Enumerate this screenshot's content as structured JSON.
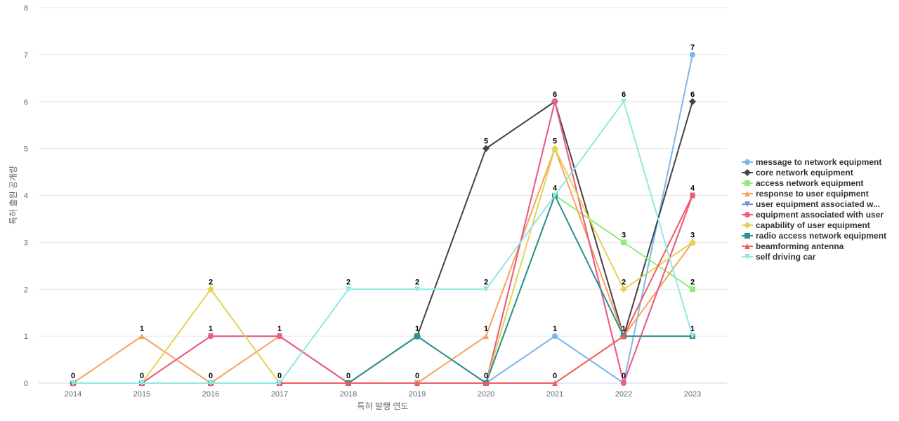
{
  "chart_data": {
    "type": "line",
    "title": "",
    "xlabel": "특허 발행 연도",
    "ylabel": "특허 출원 공개량",
    "x": [
      "2014",
      "2015",
      "2016",
      "2017",
      "2018",
      "2019",
      "2020",
      "2021",
      "2022",
      "2023"
    ],
    "ylim": [
      0,
      8
    ],
    "yticks": [
      0,
      1,
      2,
      3,
      4,
      5,
      6,
      7,
      8
    ],
    "grid": "horizontal",
    "legend_position": "right",
    "series": [
      {
        "name": "message to network equipment",
        "color": "#7cb5ec",
        "marker": "circle",
        "values": [
          0,
          0,
          0,
          0,
          0,
          0,
          0,
          1,
          0,
          7
        ],
        "labels": [
          "",
          "",
          "",
          "",
          "",
          "",
          "",
          "1",
          "",
          "7"
        ]
      },
      {
        "name": "core network equipment",
        "color": "#434348",
        "marker": "diamond",
        "values": [
          0,
          0,
          0,
          0,
          0,
          1,
          5,
          6,
          1,
          6
        ],
        "labels": [
          "",
          "",
          "",
          "",
          "",
          "",
          "5",
          "6",
          "",
          "6"
        ]
      },
      {
        "name": "access network equipment",
        "color": "#90ed7d",
        "marker": "square",
        "values": [
          0,
          0,
          0,
          0,
          0,
          1,
          0,
          4,
          3,
          2
        ],
        "labels": [
          "",
          "",
          "",
          "",
          "",
          "",
          "",
          "",
          "3",
          "2"
        ]
      },
      {
        "name": "response to user equipment",
        "color": "#f7a35c",
        "marker": "triangle",
        "values": [
          0,
          1,
          0,
          1,
          0,
          0,
          1,
          5,
          1,
          3
        ],
        "labels": [
          "",
          "1",
          "",
          "",
          "",
          "0",
          "1",
          "",
          "",
          ""
        ]
      },
      {
        "name": "user equipment associated w...",
        "color": "#8085e9",
        "marker": "triangle-down",
        "values": [
          0,
          0,
          1,
          1,
          0,
          0,
          0,
          6,
          0,
          4
        ],
        "labels": [
          "",
          "",
          "",
          "",
          "",
          "",
          "",
          "",
          "",
          ""
        ]
      },
      {
        "name": "equipment associated with user",
        "color": "#f15c80",
        "marker": "circle",
        "values": [
          0,
          0,
          1,
          1,
          0,
          0,
          0,
          6,
          0,
          4
        ],
        "labels": [
          "",
          "0",
          "1",
          "1",
          "",
          "",
          "",
          "",
          "0",
          ""
        ]
      },
      {
        "name": "capability of user equipment",
        "color": "#e4d354",
        "marker": "diamond",
        "values": [
          0,
          0,
          2,
          0,
          0,
          0,
          0,
          5,
          2,
          3
        ],
        "labels": [
          "0",
          "",
          "2",
          "0",
          "",
          "",
          "",
          "5",
          "2",
          "3"
        ]
      },
      {
        "name": "radio access network equipment",
        "color": "#2b908f",
        "marker": "square",
        "values": [
          0,
          0,
          0,
          0,
          0,
          1,
          0,
          4,
          1,
          1
        ],
        "labels": [
          "",
          "",
          "",
          "",
          "0",
          "1",
          "0",
          "",
          "1",
          ""
        ]
      },
      {
        "name": "beamforming antenna",
        "color": "#f45b5b",
        "marker": "triangle",
        "values": [
          0,
          0,
          0,
          0,
          0,
          0,
          0,
          0,
          1,
          4
        ],
        "labels": [
          "",
          "",
          "",
          "",
          "",
          "",
          "",
          "0",
          "",
          "4"
        ]
      },
      {
        "name": "self driving car",
        "color": "#91e8e1",
        "marker": "triangle-down",
        "values": [
          0,
          0,
          0,
          0,
          2,
          2,
          2,
          4,
          6,
          1
        ],
        "labels": [
          "",
          "",
          "0",
          "",
          "2",
          "2",
          "2",
          "4",
          "6",
          "1"
        ]
      }
    ]
  }
}
